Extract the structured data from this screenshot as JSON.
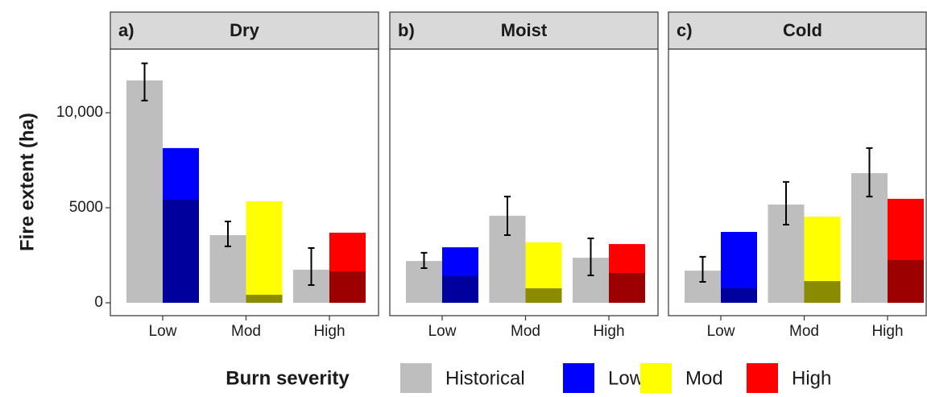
{
  "chart_data": {
    "type": "bar",
    "y_label": "Fire extent (ha)",
    "ylim": [
      -678,
      13347
    ],
    "yticks": [
      0,
      5000,
      {
        "value": 10000,
        "label": "10,000"
      }
    ],
    "grid": false,
    "legend_title": "Burn severity",
    "legend_position": "bottom",
    "categories": [
      "Low",
      "Mod",
      "High"
    ],
    "panels": [
      {
        "tag": "a)",
        "title": "Dry",
        "series": [
          {
            "name": "Historical",
            "color": "#bebebe",
            "values": [
              11700,
              3560,
              1740
            ],
            "ci": [
              [
                10640,
                12600
              ],
              [
                2970,
                4280
              ],
              [
                930,
                2880
              ]
            ]
          },
          {
            "name": "Low",
            "color": "#0000ff",
            "dark_color": "#00009c",
            "values": [
              8140,
              null,
              null
            ],
            "dark_values": [
              5420,
              null,
              null
            ]
          },
          {
            "name": "Mod",
            "color": "#ffff00",
            "dark_color": "#8b8b00",
            "values": [
              null,
              5340,
              null
            ],
            "dark_values": [
              null,
              420,
              null
            ]
          },
          {
            "name": "High",
            "color": "#ff0000",
            "dark_color": "#9c0000",
            "values": [
              null,
              null,
              3690
            ],
            "dark_values": [
              null,
              null,
              1650
            ]
          }
        ]
      },
      {
        "tag": "b)",
        "title": "Moist",
        "series": [
          {
            "name": "Historical",
            "color": "#bebebe",
            "values": [
              2200,
              4580,
              2370
            ],
            "ci": [
              [
                1820,
                2630
              ],
              [
                3560,
                5590
              ],
              [
                1440,
                3390
              ]
            ]
          },
          {
            "name": "Low",
            "color": "#0000ff",
            "dark_color": "#00009c",
            "values": [
              2920,
              null,
              null
            ],
            "dark_values": [
              1400,
              null,
              null
            ]
          },
          {
            "name": "Mod",
            "color": "#ffff00",
            "dark_color": "#8b8b00",
            "values": [
              null,
              3180,
              null
            ],
            "dark_values": [
              null,
              760,
              null
            ]
          },
          {
            "name": "High",
            "color": "#ff0000",
            "dark_color": "#9c0000",
            "values": [
              null,
              null,
              3090
            ],
            "dark_values": [
              null,
              null,
              1570
            ]
          }
        ]
      },
      {
        "tag": "c)",
        "title": "Cold",
        "series": [
          {
            "name": "Historical",
            "color": "#bebebe",
            "values": [
              1690,
              5170,
              6820
            ],
            "ci": [
              [
                1100,
                2420
              ],
              [
                4110,
                6360
              ],
              [
                5590,
                8140
              ]
            ]
          },
          {
            "name": "Low",
            "color": "#0000ff",
            "dark_color": "#00009c",
            "values": [
              3730,
              null,
              null
            ],
            "dark_values": [
              760,
              null,
              null
            ]
          },
          {
            "name": "Mod",
            "color": "#ffff00",
            "dark_color": "#8b8b00",
            "values": [
              null,
              4530,
              null
            ],
            "dark_values": [
              null,
              1140,
              null
            ]
          },
          {
            "name": "High",
            "color": "#ff0000",
            "dark_color": "#9c0000",
            "values": [
              null,
              null,
              5470
            ],
            "dark_values": [
              null,
              null,
              2250
            ]
          }
        ]
      }
    ]
  }
}
